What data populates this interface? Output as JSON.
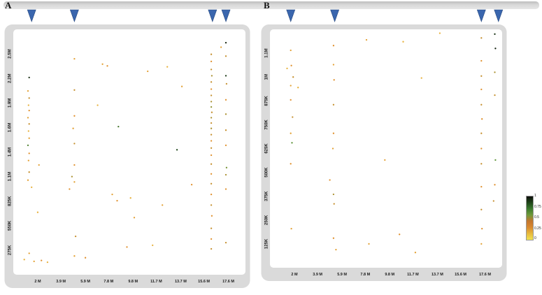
{
  "figure": {
    "panel_a_label": "A",
    "panel_b_label": "B"
  },
  "legend": {
    "labels": [
      "1",
      "0.75",
      "0.5",
      "0.25",
      "0"
    ],
    "gradient": [
      "#0d0d0a",
      "#1e4519",
      "#3b7a2e",
      "#6f9a3a",
      "#c4752e",
      "#d98a2f",
      "#e7b93d",
      "#f1e24f"
    ]
  },
  "colors": {
    "arrow": "#3a66ae",
    "arrow_edge": "#27497f",
    "frame": "#dadada",
    "plot_bg": "#ffffff",
    "tick_text": "#1a1a1a",
    "point_stops": [
      [
        0,
        "#f1e24f"
      ],
      [
        0.25,
        "#e0912f"
      ],
      [
        0.5,
        "#5d9338"
      ],
      [
        0.75,
        "#1e4519"
      ],
      [
        1,
        "#0d0d0a"
      ]
    ]
  },
  "chart_data": {
    "type": "scatter",
    "colorbar": {
      "labels": [
        "1",
        "0.75",
        "0.5",
        "0.25",
        "0"
      ],
      "range": [
        0,
        1
      ]
    },
    "panels": [
      {
        "label": "A",
        "xlim": [
          0,
          19
        ],
        "ylim": [
          0,
          2750
        ],
        "x_ticks": [
          {
            "v": 2,
            "label": "2 M"
          },
          {
            "v": 3.9,
            "label": "3.9 M"
          },
          {
            "v": 5.9,
            "label": "5.9 M"
          },
          {
            "v": 7.8,
            "label": "7.8 M"
          },
          {
            "v": 9.8,
            "label": "9.8 M"
          },
          {
            "v": 11.7,
            "label": "11.7 M"
          },
          {
            "v": 13.7,
            "label": "13.7 M"
          },
          {
            "v": 15.6,
            "label": "15.6 M"
          },
          {
            "v": 17.6,
            "label": "17.6 M"
          }
        ],
        "y_ticks": [
          {
            "v": 275,
            "label": "275K"
          },
          {
            "v": 550,
            "label": "550K"
          },
          {
            "v": 825,
            "label": "825K"
          },
          {
            "v": 1100,
            "label": "1.1M"
          },
          {
            "v": 1375,
            "label": "1.4M"
          },
          {
            "v": 1650,
            "label": "1.6M"
          },
          {
            "v": 1925,
            "label": "1.9M"
          },
          {
            "v": 2200,
            "label": "2.2M"
          },
          {
            "v": 2475,
            "label": "2.5M"
          }
        ],
        "arrows_x": [
          1.5,
          5.0,
          16.3,
          17.4
        ],
        "points": [
          [
            1.3,
            2210,
            0.85
          ],
          [
            1.2,
            2060,
            0.2
          ],
          [
            1.3,
            1980,
            0.3
          ],
          [
            1.25,
            1900,
            0.15
          ],
          [
            1.3,
            1840,
            0.25
          ],
          [
            1.2,
            1760,
            0.2
          ],
          [
            1.3,
            1690,
            0.3
          ],
          [
            1.25,
            1610,
            0.15
          ],
          [
            1.3,
            1530,
            0.2
          ],
          [
            1.2,
            1450,
            0.55
          ],
          [
            1.3,
            1360,
            0.25
          ],
          [
            1.25,
            1280,
            0.2
          ],
          [
            1.3,
            1150,
            0.3
          ],
          [
            1.2,
            1060,
            0.2
          ],
          [
            1.5,
            980,
            0.15
          ],
          [
            1.3,
            240,
            0.2
          ],
          [
            0.9,
            170,
            0.15
          ],
          [
            1.7,
            150,
            0.2
          ],
          [
            2.3,
            160,
            0.25
          ],
          [
            2.8,
            140,
            0.15
          ],
          [
            2.1,
            1230,
            0.2
          ],
          [
            2.0,
            700,
            0.15
          ],
          [
            5.0,
            2420,
            0.2
          ],
          [
            5.0,
            2070,
            0.3
          ],
          [
            5.0,
            1780,
            0.25
          ],
          [
            4.9,
            1640,
            0.2
          ],
          [
            5.0,
            1470,
            0.3
          ],
          [
            5.0,
            1230,
            0.25
          ],
          [
            4.8,
            1100,
            0.35
          ],
          [
            5.0,
            1040,
            0.2
          ],
          [
            4.6,
            960,
            0.25
          ],
          [
            5.1,
            430,
            0.3
          ],
          [
            5.0,
            210,
            0.2
          ],
          [
            5.9,
            190,
            0.25
          ],
          [
            7.3,
            2360,
            0.2
          ],
          [
            7.7,
            2340,
            0.25
          ],
          [
            6.9,
            1900,
            0.15
          ],
          [
            8.6,
            1660,
            0.6
          ],
          [
            8.1,
            900,
            0.2
          ],
          [
            8.5,
            830,
            0.25
          ],
          [
            9.6,
            860,
            0.15
          ],
          [
            9.9,
            640,
            0.2
          ],
          [
            9.3,
            310,
            0.25
          ],
          [
            11.4,
            330,
            0.15
          ],
          [
            11.0,
            2280,
            0.2
          ],
          [
            12.6,
            2330,
            0.15
          ],
          [
            13.4,
            1400,
            0.75
          ],
          [
            13.8,
            2110,
            0.2
          ],
          [
            14.6,
            1010,
            0.25
          ],
          [
            12.2,
            780,
            0.2
          ],
          [
            16.2,
            2470,
            0.3
          ],
          [
            16.2,
            2390,
            0.25
          ],
          [
            16.2,
            2300,
            0.3
          ],
          [
            16.25,
            2230,
            0.35
          ],
          [
            16.2,
            2160,
            0.3
          ],
          [
            16.2,
            2080,
            0.25
          ],
          [
            16.2,
            2010,
            0.3
          ],
          [
            16.2,
            1940,
            0.35
          ],
          [
            16.2,
            1880,
            0.4
          ],
          [
            16.25,
            1820,
            0.3
          ],
          [
            16.2,
            1760,
            0.35
          ],
          [
            16.2,
            1700,
            0.3
          ],
          [
            16.2,
            1640,
            0.35
          ],
          [
            16.2,
            1570,
            0.3
          ],
          [
            16.2,
            1500,
            0.25
          ],
          [
            16.2,
            1420,
            0.3
          ],
          [
            16.2,
            1340,
            0.25
          ],
          [
            16.2,
            1240,
            0.3
          ],
          [
            16.2,
            1130,
            0.25
          ],
          [
            16.2,
            1020,
            0.3
          ],
          [
            16.2,
            900,
            0.25
          ],
          [
            16.2,
            780,
            0.3
          ],
          [
            16.25,
            660,
            0.25
          ],
          [
            16.2,
            520,
            0.3
          ],
          [
            16.2,
            400,
            0.25
          ],
          [
            16.2,
            290,
            0.3
          ],
          [
            17.4,
            2600,
            0.9
          ],
          [
            17.4,
            2450,
            0.3
          ],
          [
            17.4,
            2230,
            0.8
          ],
          [
            17.45,
            2140,
            0.3
          ],
          [
            17.4,
            1960,
            0.25
          ],
          [
            17.4,
            1800,
            0.35
          ],
          [
            17.4,
            1620,
            0.3
          ],
          [
            17.4,
            1450,
            0.25
          ],
          [
            17.45,
            1200,
            0.45
          ],
          [
            17.4,
            1120,
            0.35
          ],
          [
            17.4,
            960,
            0.25
          ],
          [
            17.4,
            360,
            0.3
          ],
          [
            17.0,
            2550,
            0.2
          ]
        ]
      },
      {
        "label": "B",
        "xlim": [
          0,
          19
        ],
        "ylim": [
          0,
          1250
        ],
        "x_ticks": [
          {
            "v": 2,
            "label": "2 M"
          },
          {
            "v": 3.9,
            "label": "3.9 M"
          },
          {
            "v": 5.9,
            "label": "5.9 M"
          },
          {
            "v": 7.8,
            "label": "7.8 M"
          },
          {
            "v": 9.8,
            "label": "9.8 M"
          },
          {
            "v": 11.7,
            "label": "11.7 M"
          },
          {
            "v": 13.7,
            "label": "13.7 M"
          },
          {
            "v": 15.6,
            "label": "15.6 M"
          },
          {
            "v": 17.6,
            "label": "17.6 M"
          }
        ],
        "y_ticks": [
          {
            "v": 125,
            "label": "125K"
          },
          {
            "v": 250,
            "label": "250K"
          },
          {
            "v": 375,
            "label": "375K"
          },
          {
            "v": 500,
            "label": "500K"
          },
          {
            "v": 625,
            "label": "625K"
          },
          {
            "v": 750,
            "label": "750K"
          },
          {
            "v": 875,
            "label": "875K"
          },
          {
            "v": 1000,
            "label": "1M"
          },
          {
            "v": 1125,
            "label": "1.1M"
          }
        ],
        "arrows_x": [
          1.7,
          5.3,
          17.3,
          18.7
        ],
        "points": [
          [
            1.7,
            1140,
            0.2
          ],
          [
            1.75,
            1060,
            0.25
          ],
          [
            1.9,
            1000,
            0.3
          ],
          [
            1.7,
            955,
            0.2
          ],
          [
            2.3,
            945,
            0.15
          ],
          [
            1.7,
            880,
            0.25
          ],
          [
            1.85,
            790,
            0.3
          ],
          [
            1.7,
            705,
            0.2
          ],
          [
            1.8,
            655,
            0.5
          ],
          [
            1.7,
            545,
            0.25
          ],
          [
            1.75,
            205,
            0.2
          ],
          [
            1.4,
            1045,
            0.15
          ],
          [
            5.2,
            1165,
            0.25
          ],
          [
            5.2,
            1065,
            0.2
          ],
          [
            5.25,
            985,
            0.25
          ],
          [
            5.2,
            855,
            0.3
          ],
          [
            5.2,
            705,
            0.25
          ],
          [
            5.15,
            625,
            0.2
          ],
          [
            5.2,
            385,
            0.35
          ],
          [
            5.25,
            335,
            0.3
          ],
          [
            5.2,
            155,
            0.25
          ],
          [
            5.4,
            95,
            0.2
          ],
          [
            4.9,
            460,
            0.25
          ],
          [
            7.9,
            1195,
            0.2
          ],
          [
            10.9,
            1185,
            0.15
          ],
          [
            9.4,
            565,
            0.2
          ],
          [
            10.6,
            175,
            0.25
          ],
          [
            12.4,
            995,
            0.15
          ],
          [
            8.1,
            125,
            0.2
          ],
          [
            13.9,
            1230,
            0.15
          ],
          [
            11.9,
            80,
            0.2
          ],
          [
            17.3,
            1205,
            0.3
          ],
          [
            17.3,
            1085,
            0.25
          ],
          [
            17.3,
            1005,
            0.3
          ],
          [
            17.3,
            935,
            0.25
          ],
          [
            17.3,
            855,
            0.3
          ],
          [
            17.35,
            780,
            0.25
          ],
          [
            17.3,
            705,
            0.3
          ],
          [
            17.3,
            625,
            0.25
          ],
          [
            17.3,
            545,
            0.3
          ],
          [
            17.3,
            425,
            0.25
          ],
          [
            17.3,
            305,
            0.3
          ],
          [
            17.35,
            205,
            0.25
          ],
          [
            17.3,
            125,
            0.2
          ],
          [
            18.4,
            1225,
            0.85
          ],
          [
            18.45,
            1150,
            0.9
          ],
          [
            18.4,
            1025,
            0.35
          ],
          [
            18.4,
            905,
            0.3
          ],
          [
            18.45,
            565,
            0.5
          ],
          [
            18.4,
            435,
            0.25
          ],
          [
            18.3,
            350,
            0.3
          ]
        ]
      }
    ]
  }
}
